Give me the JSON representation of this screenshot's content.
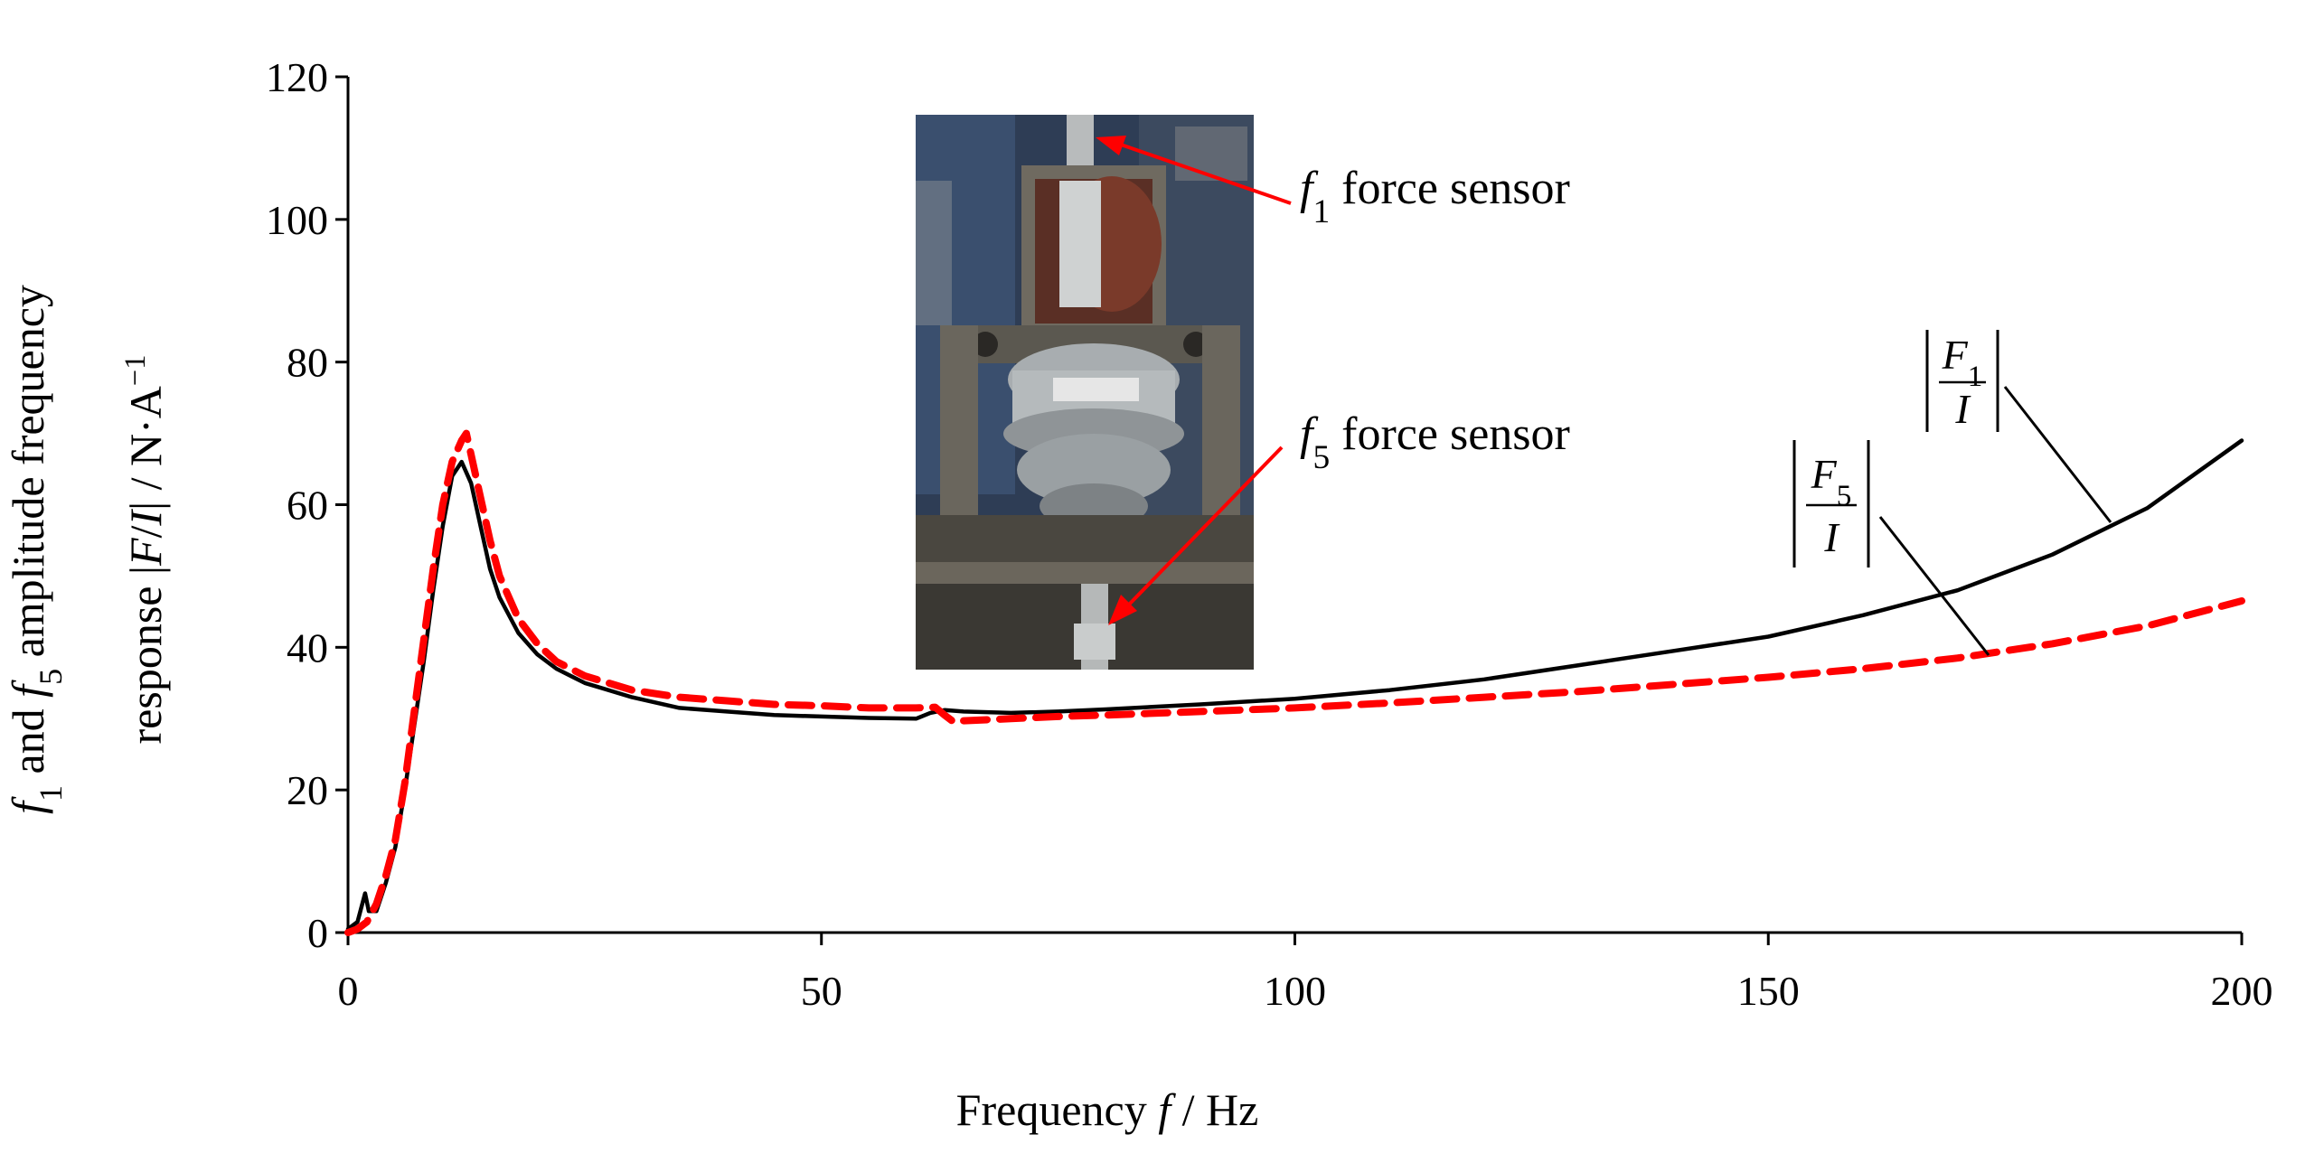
{
  "chart_data": {
    "type": "line",
    "title": "",
    "xlabel": {
      "prefix": "Frequency ",
      "symbol": "f",
      "suffix": " / Hz"
    },
    "ylabel": {
      "line1_parts": [
        "f",
        "1",
        " and ",
        "f",
        "5",
        " amplitude frequency"
      ],
      "line2_parts": [
        "response  |",
        "F",
        "/",
        "I",
        "| / N·A",
        "−1"
      ]
    },
    "xlim": [
      0,
      200
    ],
    "ylim": [
      0,
      120
    ],
    "xticks": [
      0,
      50,
      100,
      150,
      200
    ],
    "yticks": [
      0,
      20,
      40,
      60,
      80,
      100,
      120
    ],
    "grid": false,
    "series": [
      {
        "name": "|F1/I|",
        "color": "#000000",
        "line_style": "solid",
        "x": [
          0,
          1,
          1.8,
          2.2,
          3,
          4,
          5,
          6,
          7,
          8,
          9,
          10,
          11,
          12,
          13,
          14,
          15,
          16,
          18,
          20,
          22,
          25,
          30,
          35,
          40,
          45,
          50,
          55,
          60,
          61.5,
          63,
          65,
          70,
          75,
          80,
          90,
          100,
          110,
          120,
          130,
          140,
          150,
          160,
          170,
          180,
          190,
          200
        ],
        "y": [
          0.5,
          1.5,
          5.5,
          3,
          3,
          7,
          12,
          20,
          29,
          38,
          48,
          57,
          64,
          66,
          63,
          57,
          51,
          47,
          42,
          39,
          37,
          35,
          33,
          31.5,
          31,
          30.5,
          30.3,
          30.1,
          30,
          30.8,
          31.2,
          31,
          30.8,
          31,
          31.3,
          32,
          32.8,
          34,
          35.5,
          37.5,
          39.5,
          41.5,
          44.5,
          48,
          53,
          59.5,
          69
        ]
      },
      {
        "name": "|F5/I|",
        "color": "#ff0000",
        "line_style": "dashed",
        "x": [
          0,
          1,
          2,
          3,
          4,
          5,
          6,
          7,
          8,
          9,
          10,
          11,
          12,
          12.5,
          13,
          14,
          15,
          16,
          18,
          20,
          22,
          25,
          30,
          35,
          40,
          45,
          50,
          55,
          60,
          62,
          63,
          64,
          65,
          70,
          75,
          80,
          90,
          100,
          110,
          120,
          130,
          140,
          150,
          160,
          170,
          180,
          190,
          200
        ],
        "y": [
          0,
          0.5,
          1.5,
          4,
          8,
          13,
          21,
          31,
          41,
          51,
          60,
          66,
          69,
          70,
          67,
          61,
          55,
          50,
          44,
          40.5,
          38,
          36,
          34,
          33,
          32.5,
          32,
          31.8,
          31.5,
          31.5,
          31.6,
          30.5,
          29.5,
          29.7,
          30,
          30.3,
          30.5,
          31,
          31.5,
          32.2,
          33,
          33.8,
          34.8,
          35.8,
          37,
          38.5,
          40.5,
          43,
          46.5
        ]
      }
    ],
    "annotations": [
      {
        "kind": "callout",
        "parts": [
          "f",
          "1",
          " force sensor"
        ],
        "arrow_color": "#ff0000"
      },
      {
        "kind": "callout",
        "parts": [
          "f",
          "5",
          " force sensor"
        ],
        "arrow_color": "#ff0000"
      },
      {
        "kind": "series-label",
        "series": "|F1/I|",
        "numerator": [
          "F",
          "1"
        ],
        "denominator": "I"
      },
      {
        "kind": "series-label",
        "series": "|F5/I|",
        "numerator": [
          "F",
          "5"
        ],
        "denominator": "I"
      }
    ]
  },
  "inset_photo": {
    "subject": "test rig with mount between f1 and f5 force sensors",
    "label_text": "",
    "colors": {
      "background": "#3a4f6e",
      "frame": "#6f6a60",
      "rubber": "#9aa0a3",
      "base": "#4a4740",
      "sensor": "#c9cccc"
    }
  }
}
